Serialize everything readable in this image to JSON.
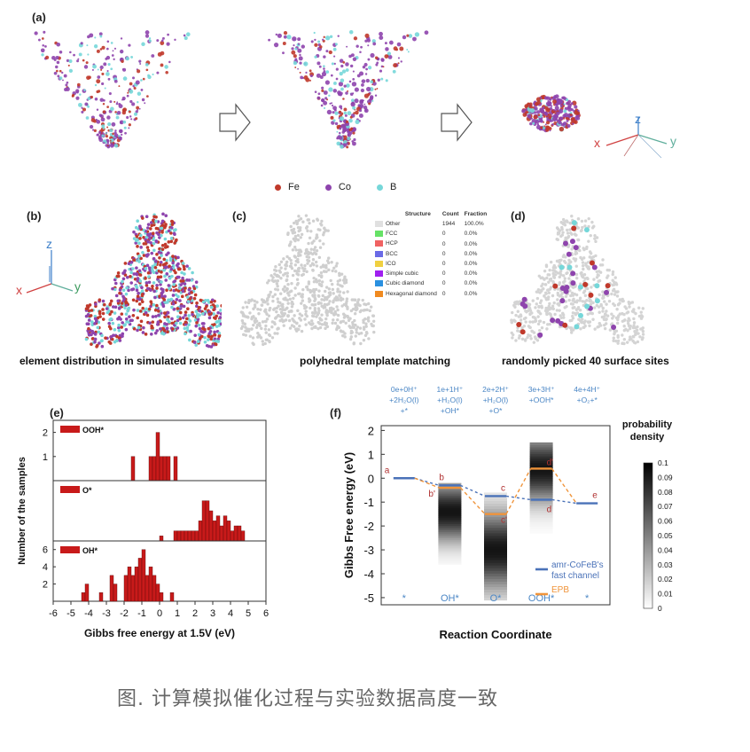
{
  "panel_a": {
    "label": "(a)",
    "legend": [
      {
        "name": "Fe",
        "color": "#c0392b"
      },
      {
        "name": "Co",
        "color": "#8e44ad"
      },
      {
        "name": "B",
        "color": "#76d7d9"
      }
    ],
    "axes": {
      "x": "x",
      "y": "y",
      "z": "z"
    }
  },
  "panel_b": {
    "label": "(b)",
    "caption": "element distribution in simulated results",
    "axes": {
      "x": "x",
      "y": "y",
      "z": "z"
    }
  },
  "panel_c": {
    "label": "(c)",
    "caption": "polyhedral template matching",
    "table": {
      "headers": [
        "Structure",
        "Count",
        "Fraction"
      ],
      "rows": [
        {
          "name": "Other",
          "count": "1944",
          "fraction": "100.0%",
          "color": "#e0e0e0"
        },
        {
          "name": "FCC",
          "count": "0",
          "fraction": "0.0%",
          "color": "#66e266"
        },
        {
          "name": "HCP",
          "count": "0",
          "fraction": "0.0%",
          "color": "#f06262"
        },
        {
          "name": "BCC",
          "count": "0",
          "fraction": "0.0%",
          "color": "#6a6ae6"
        },
        {
          "name": "ICO",
          "count": "0",
          "fraction": "0.0%",
          "color": "#f0d040"
        },
        {
          "name": "Simple cubic",
          "count": "0",
          "fraction": "0.0%",
          "color": "#a020f0"
        },
        {
          "name": "Cubic diamond",
          "count": "0",
          "fraction": "0.0%",
          "color": "#2a90e0"
        },
        {
          "name": "Hexagonal diamond",
          "count": "0",
          "fraction": "0.0%",
          "color": "#f08a20"
        }
      ]
    }
  },
  "panel_d": {
    "label": "(d)",
    "caption": "randomly picked 40 surface sites"
  },
  "panel_e": {
    "label": "(e)"
  },
  "panel_f": {
    "label": "(f)"
  },
  "figure_caption": "图. 计算模拟催化过程与实验数据高度一致",
  "chart_data": [
    {
      "type": "bar",
      "xlabel": "Gibbs free energy at 1.5V (eV)",
      "ylabel": "Number of the samples",
      "xlim": [
        -6,
        6
      ],
      "xticks": [
        "-6",
        "-5",
        "-4",
        "-3",
        "-2",
        "-1",
        "0",
        "1",
        "2",
        "3",
        "4",
        "5",
        "6"
      ],
      "color": "#c81a1a",
      "subplots": [
        {
          "name": "OOH*",
          "yticks": [
            "1",
            "2"
          ],
          "ylim": [
            0,
            2.5
          ],
          "bins": [
            {
              "x": -1.5,
              "v": 1
            },
            {
              "x": -0.5,
              "v": 1
            },
            {
              "x": -0.3,
              "v": 1
            },
            {
              "x": -0.1,
              "v": 2
            },
            {
              "x": 0.1,
              "v": 1
            },
            {
              "x": 0.3,
              "v": 1
            },
            {
              "x": 0.5,
              "v": 1
            },
            {
              "x": 0.9,
              "v": 1
            }
          ]
        },
        {
          "name": "O*",
          "yticks": [],
          "ylim": [
            0,
            12
          ],
          "bins": [
            {
              "x": 0.1,
              "v": 1
            },
            {
              "x": 0.9,
              "v": 2
            },
            {
              "x": 1.1,
              "v": 2
            },
            {
              "x": 1.3,
              "v": 2
            },
            {
              "x": 1.5,
              "v": 2
            },
            {
              "x": 1.7,
              "v": 2
            },
            {
              "x": 1.9,
              "v": 2
            },
            {
              "x": 2.1,
              "v": 2
            },
            {
              "x": 2.3,
              "v": 4
            },
            {
              "x": 2.5,
              "v": 8
            },
            {
              "x": 2.7,
              "v": 8
            },
            {
              "x": 2.9,
              "v": 6
            },
            {
              "x": 3.1,
              "v": 4
            },
            {
              "x": 3.3,
              "v": 5
            },
            {
              "x": 3.5,
              "v": 3
            },
            {
              "x": 3.7,
              "v": 5
            },
            {
              "x": 3.9,
              "v": 4
            },
            {
              "x": 4.1,
              "v": 2
            },
            {
              "x": 4.3,
              "v": 3
            },
            {
              "x": 4.5,
              "v": 3
            },
            {
              "x": 4.7,
              "v": 2
            }
          ]
        },
        {
          "name": "OH*",
          "yticks": [
            "2",
            "4",
            "6"
          ],
          "ylim": [
            0,
            7
          ],
          "bins": [
            {
              "x": -4.3,
              "v": 1
            },
            {
              "x": -4.1,
              "v": 2
            },
            {
              "x": -3.3,
              "v": 1
            },
            {
              "x": -2.7,
              "v": 3
            },
            {
              "x": -2.5,
              "v": 2
            },
            {
              "x": -1.9,
              "v": 3
            },
            {
              "x": -1.7,
              "v": 4
            },
            {
              "x": -1.5,
              "v": 3
            },
            {
              "x": -1.3,
              "v": 4
            },
            {
              "x": -1.1,
              "v": 5
            },
            {
              "x": -0.9,
              "v": 6
            },
            {
              "x": -0.7,
              "v": 3
            },
            {
              "x": -0.5,
              "v": 4
            },
            {
              "x": -0.3,
              "v": 3
            },
            {
              "x": -0.1,
              "v": 2
            },
            {
              "x": 0.1,
              "v": 1
            },
            {
              "x": 0.7,
              "v": 1
            }
          ]
        }
      ]
    },
    {
      "type": "line",
      "ylabel": "Gibbs Free energy (eV)",
      "xlabel": "Reaction Coordinate",
      "ylim": [
        -5.3,
        2.2
      ],
      "yticks": [
        "2",
        "1",
        "0",
        "-1",
        "-2",
        "-3",
        "-4",
        "-5"
      ],
      "categories": [
        "*",
        "OH*",
        "O*",
        "OOH*",
        "*"
      ],
      "steps_top": [
        [
          "0e+0H⁺",
          "+2H₂O(l)",
          "+*"
        ],
        [
          "1e+1H⁺",
          "+H₂O(l)",
          "+OH*"
        ],
        [
          "2e+2H⁺",
          "+H₂O(l)",
          "+O*"
        ],
        [
          "3e+3H⁺",
          "+OOH*"
        ],
        [
          "4e+4H⁺",
          "+O₂+*"
        ]
      ],
      "series": [
        {
          "name": "amr-CoFeB's fast channel",
          "color": "#4a72b8",
          "values": [
            0,
            -0.3,
            -0.75,
            -0.9,
            -1.05
          ],
          "point_labels": [
            "a",
            "b",
            "c",
            "d",
            "e"
          ]
        },
        {
          "name": "EPB",
          "color": "#f0943a",
          "values": [
            0,
            -0.4,
            -1.5,
            0.4,
            -1.05
          ],
          "point_labels": [
            "",
            "b'",
            "c'",
            "d'",
            ""
          ]
        }
      ],
      "colorbar": {
        "label": "probability density",
        "ticks": [
          "0.1",
          "0.09",
          "0.08",
          "0.07",
          "0.06",
          "0.05",
          "0.04",
          "0.03",
          "0.02",
          "0.01",
          "0"
        ]
      },
      "distributions": [
        {
          "step": 1,
          "min": -3.6,
          "max": -0.2,
          "peak": -1.4
        },
        {
          "step": 2,
          "min": -5.1,
          "max": -0.6,
          "peak": -3.0
        },
        {
          "step": 3,
          "min": -2.3,
          "max": 1.5,
          "peak": 0.4
        }
      ]
    }
  ]
}
